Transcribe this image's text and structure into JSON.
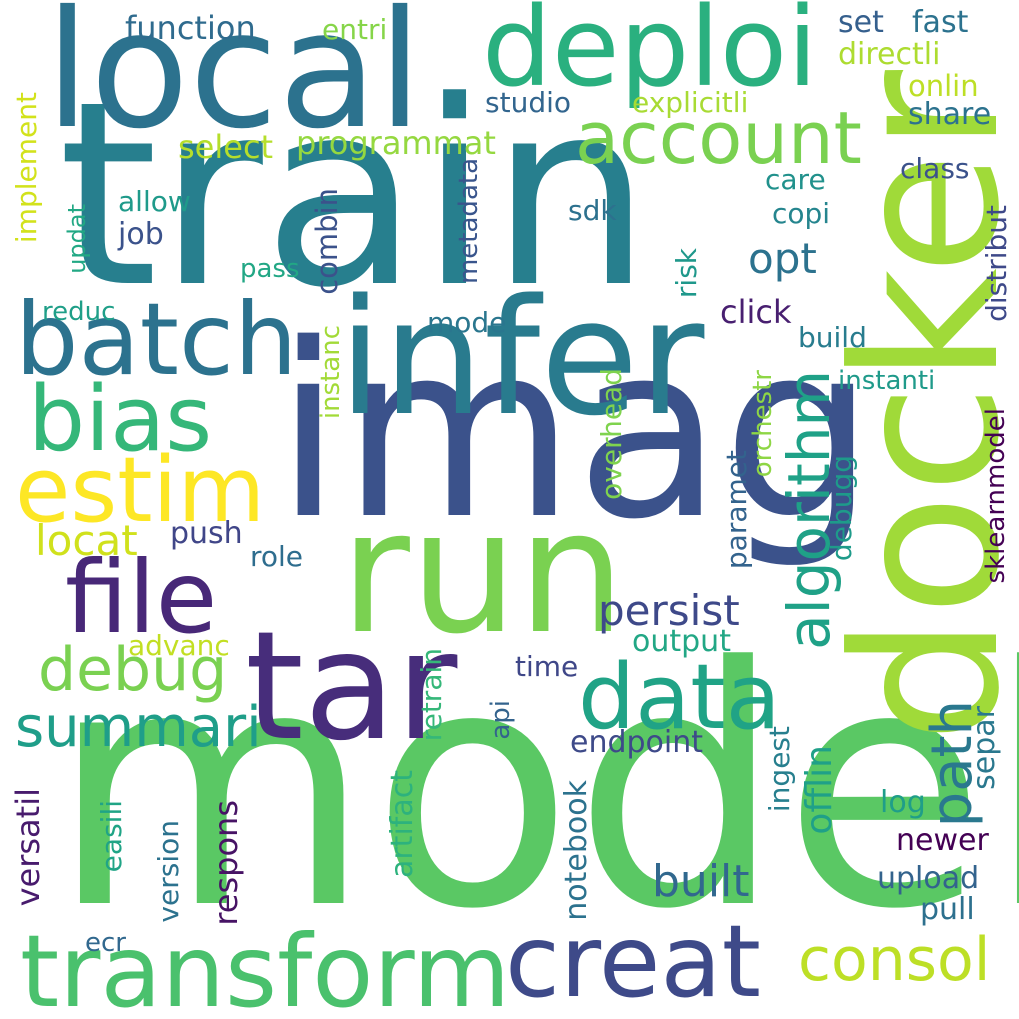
{
  "words": [
    {
      "text": "model",
      "color": "#5ac864"
    },
    {
      "text": "train",
      "color": "#277f8e"
    },
    {
      "text": "imag",
      "color": "#3b528b"
    },
    {
      "text": "docker",
      "color": "#a0da39"
    },
    {
      "text": "infer",
      "color": "#297b8e"
    },
    {
      "text": "run",
      "color": "#7ad151"
    },
    {
      "text": "local",
      "color": "#2c728e"
    },
    {
      "text": "deploi",
      "color": "#2ab07f"
    },
    {
      "text": "tar",
      "color": "#472d7b"
    },
    {
      "text": "batch",
      "color": "#2c728e"
    },
    {
      "text": "creat",
      "color": "#3e4a89"
    },
    {
      "text": "transform",
      "color": "#4ac16d"
    },
    {
      "text": "file",
      "color": "#482878"
    },
    {
      "text": "data",
      "color": "#20a386"
    },
    {
      "text": "bias",
      "color": "#35b779"
    },
    {
      "text": "estim",
      "color": "#fde725"
    },
    {
      "text": "account",
      "color": "#7ad151"
    },
    {
      "text": "algorithm",
      "color": "#1fa187"
    },
    {
      "text": "path",
      "color": "#2a788e"
    },
    {
      "text": "summari",
      "color": "#1f9e89"
    },
    {
      "text": "debug",
      "color": "#7ad151"
    },
    {
      "text": "consol",
      "color": "#bddf26"
    },
    {
      "text": "persist",
      "color": "#3e4989"
    },
    {
      "text": "built",
      "color": "#31688e"
    },
    {
      "text": "locat",
      "color": "#d0e11c"
    },
    {
      "text": "opt",
      "color": "#2c728e"
    },
    {
      "text": "function",
      "color": "#2f6b8e"
    },
    {
      "text": "entri",
      "color": "#86d549"
    },
    {
      "text": "set",
      "color": "#355f8d"
    },
    {
      "text": "fast",
      "color": "#2c728e"
    },
    {
      "text": "directli",
      "color": "#addc30"
    },
    {
      "text": "onlin",
      "color": "#bddf26"
    },
    {
      "text": "studio",
      "color": "#32658e"
    },
    {
      "text": "explicitli",
      "color": "#a8db34"
    },
    {
      "text": "share",
      "color": "#2c728e"
    },
    {
      "text": "select",
      "color": "#b5de2b"
    },
    {
      "text": "programmat",
      "color": "#95d840"
    },
    {
      "text": "implement",
      "color": "#d2e21b"
    },
    {
      "text": "class",
      "color": "#3b528b"
    },
    {
      "text": "care",
      "color": "#21918c"
    },
    {
      "text": "allow",
      "color": "#1f9a8a"
    },
    {
      "text": "sdk",
      "color": "#2d718e"
    },
    {
      "text": "copi",
      "color": "#25858e"
    },
    {
      "text": "job",
      "color": "#3b528b"
    },
    {
      "text": "updat",
      "color": "#22a884"
    },
    {
      "text": "metadata",
      "color": "#39558c"
    },
    {
      "text": "combin",
      "color": "#3b528b"
    },
    {
      "text": "distribut",
      "color": "#3e4989"
    },
    {
      "text": "pass",
      "color": "#22a785"
    },
    {
      "text": "risk",
      "color": "#1f988b"
    },
    {
      "text": "reduc",
      "color": "#1f9f88"
    },
    {
      "text": "click",
      "color": "#481f70"
    },
    {
      "text": "mode",
      "color": "#2a768e"
    },
    {
      "text": "build",
      "color": "#287c8e"
    },
    {
      "text": "instanc",
      "color": "#a2da37"
    },
    {
      "text": "instanti",
      "color": "#1f9a8a"
    },
    {
      "text": "overhead",
      "color": "#7fd34e"
    },
    {
      "text": "orchestr",
      "color": "#8ed645"
    },
    {
      "text": "paramet",
      "color": "#33638d"
    },
    {
      "text": "debugg",
      "color": "#1e9b8a"
    },
    {
      "text": "sklearnmodel",
      "color": "#440154"
    },
    {
      "text": "push",
      "color": "#404688"
    },
    {
      "text": "role",
      "color": "#2e6d8e"
    },
    {
      "text": "advanc",
      "color": "#c2df23"
    },
    {
      "text": "output",
      "color": "#22a785"
    },
    {
      "text": "time",
      "color": "#3f4788"
    },
    {
      "text": "retrain",
      "color": "#35b779"
    },
    {
      "text": "api",
      "color": "#33638d"
    },
    {
      "text": "endpoint",
      "color": "#3e4a89"
    },
    {
      "text": "separ",
      "color": "#2a788e"
    },
    {
      "text": "artifact",
      "color": "#2db27d"
    },
    {
      "text": "ingest",
      "color": "#277f8e"
    },
    {
      "text": "offlin",
      "color": "#1fa088"
    },
    {
      "text": "log",
      "color": "#1f9e89"
    },
    {
      "text": "newer",
      "color": "#440154"
    },
    {
      "text": "versatil",
      "color": "#481b6d"
    },
    {
      "text": "easili",
      "color": "#20a486"
    },
    {
      "text": "version",
      "color": "#2c728e"
    },
    {
      "text": "respons",
      "color": "#471365"
    },
    {
      "text": "notebook",
      "color": "#2c728e"
    },
    {
      "text": "upload",
      "color": "#33638d"
    },
    {
      "text": "pull",
      "color": "#2d708e"
    },
    {
      "text": "ecr",
      "color": "#31688e"
    }
  ]
}
